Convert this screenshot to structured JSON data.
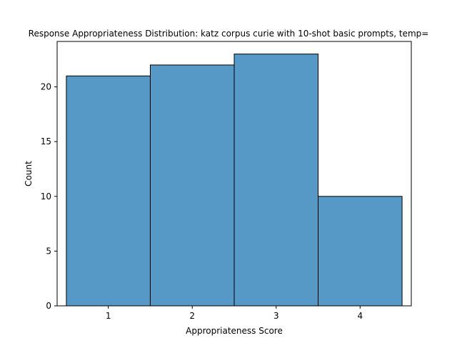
{
  "chart_data": {
    "type": "bar",
    "title": "Response Appropriateness Distribution: katz corpus curie with 10-shot basic prompts, temp=",
    "xlabel": "Appropriateness Score",
    "ylabel": "Count",
    "categories": [
      "1",
      "2",
      "3",
      "4"
    ],
    "values": [
      21,
      22,
      23,
      10
    ],
    "xlim": [
      0.39,
      4.61
    ],
    "ylim": [
      0,
      24.15
    ],
    "y_ticks": [
      0,
      5,
      10,
      15,
      20
    ],
    "grid": false,
    "colors": {
      "bar_fill": "#5799c6",
      "bar_edge": "#000000"
    }
  }
}
